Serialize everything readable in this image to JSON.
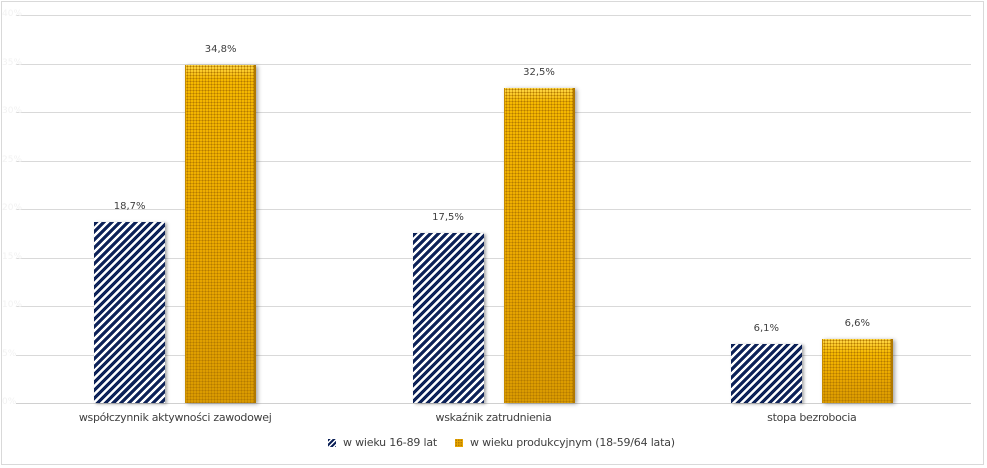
{
  "chart_data": {
    "type": "bar",
    "title": "",
    "xlabel": "",
    "ylabel": "",
    "ylim": [
      0,
      40
    ],
    "y_ticks": [
      "0%",
      "5%",
      "10%",
      "15%",
      "20%",
      "25%",
      "30%",
      "35%",
      "40%"
    ],
    "grid": true,
    "legend_position": "bottom",
    "categories": [
      "współczynnik aktywności zawodowej",
      "wskaźnik zatrudnienia",
      "stopa bezrobocia"
    ],
    "series": [
      {
        "name": "w wieku 16-89 lat",
        "values": [
          18.7,
          17.5,
          6.1
        ],
        "labels": [
          "18,7%",
          "17,5%",
          "6,1%"
        ],
        "color": "#0d2258",
        "pattern": "diagonal-stripes"
      },
      {
        "name": "w wieku produkcyjnym (18-59/64 lata)",
        "values": [
          34.8,
          32.5,
          6.6
        ],
        "labels": [
          "34,8%",
          "32,5%",
          "6,6%"
        ],
        "color": "#e8a600",
        "pattern": "dotted-grid"
      }
    ]
  }
}
